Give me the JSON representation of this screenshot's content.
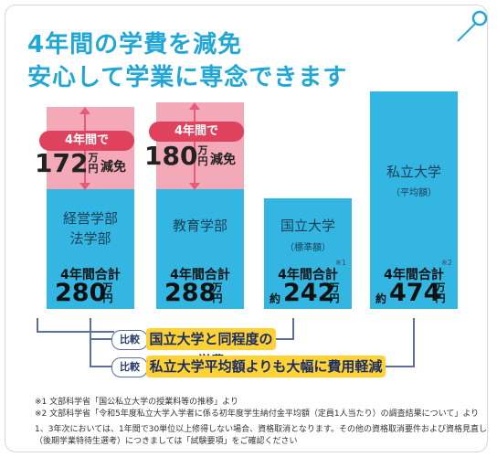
{
  "heading": {
    "line1": "4年間の学費を減免",
    "line2": "安心して学業に専念できます"
  },
  "colors": {
    "accent_blue": "#33b6e2",
    "title_blue": "#20a7d6",
    "reduction_pink": "#f4a9b9",
    "pill_red": "#e0425e",
    "highlight_yellow": "#ffd233"
  },
  "bars": [
    {
      "reduction_pill": "4年間で",
      "reduction_value": "172",
      "reduction_unit_top": "万",
      "reduction_unit_bottom": "円",
      "reduction_suffix": "減免",
      "label_lines": [
        "経営学部",
        "法学部"
      ],
      "total_label": "4年間合計",
      "total_value": "280",
      "total_unit_top": "万",
      "total_unit_bottom": "円"
    },
    {
      "reduction_pill": "4年間で",
      "reduction_value": "180",
      "reduction_unit_top": "万",
      "reduction_unit_bottom": "円",
      "reduction_suffix": "減免",
      "label_lines": [
        "教育学部"
      ],
      "total_label": "4年間合計",
      "total_value": "288",
      "total_unit_top": "万",
      "total_unit_bottom": "円"
    },
    {
      "label_lines": [
        "国立大学"
      ],
      "sub_label": "（標準額）",
      "ref_mark": "※1",
      "total_label": "4年間合計",
      "approx": "約",
      "total_value": "242",
      "total_unit_top": "万",
      "total_unit_bottom": "円"
    },
    {
      "label_lines": [
        "私立大学"
      ],
      "sub_label": "（平均額）",
      "ref_mark": "※2",
      "total_label": "4年間合計",
      "approx": "約",
      "total_value": "474",
      "total_unit_top": "万",
      "total_unit_bottom": "円"
    }
  ],
  "comparisons": [
    {
      "badge": "比較",
      "text": "国立大学と同程度の学費"
    },
    {
      "badge": "比較",
      "text": "私立大学平均額よりも大幅に費用軽減"
    }
  ],
  "notes": [
    "※1  文部科学省「国公私立大学の授業料等の推移」より",
    "※2  文部科学省「令和5年度私立大学入学者に係る初年度学生納付金平均額（定員1人当たり）の調査結果について」より",
    "1、3年次においては、1年間で30単位以上修得しない場合、資格取消となります。その他の資格取消要件および資格見直し",
    "（後期学業特待生選考）につきましては「試験要項」をご確認ください"
  ]
}
